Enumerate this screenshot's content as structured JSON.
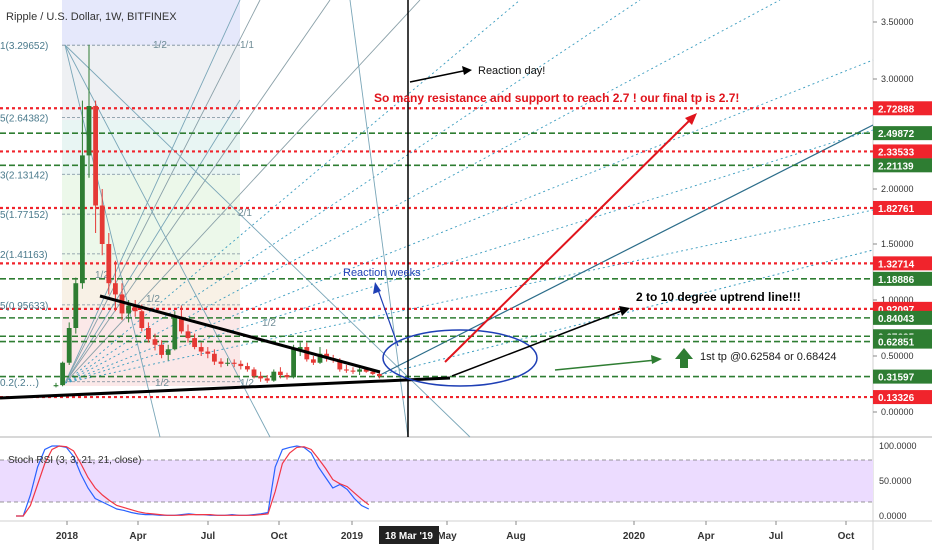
{
  "header": {
    "title": "Ripple / U.S. Dollar, 1W, BITFINEX"
  },
  "chart_data": [
    {
      "type": "candlestick",
      "title": "Ripple / U.S. Dollar, 1W, BITFINEX",
      "y_axis": {
        "scale": "log",
        "ticks": [
          "3.50000",
          "3.00000",
          "2.50000",
          "2.00000",
          "1.50000",
          "1.00000",
          "0.50000",
          "0.00000"
        ],
        "tick_values": [
          3.5,
          3.0,
          2.5,
          2.0,
          1.5,
          1.0,
          0.5,
          0.0
        ],
        "ylim": [
          0.0,
          3.8
        ]
      },
      "x_axis": {
        "ticks": [
          "2018",
          "Apr",
          "Jul",
          "Oct",
          "2019",
          "May",
          "Aug",
          "2020",
          "Apr",
          "Jul",
          "Oct"
        ],
        "highlight_label": "18 Mar '19"
      },
      "candles": [
        {
          "o": 0.23,
          "h": 0.26,
          "l": 0.22,
          "c": 0.24
        },
        {
          "o": 0.24,
          "h": 0.45,
          "l": 0.23,
          "c": 0.44
        },
        {
          "o": 0.44,
          "h": 0.8,
          "l": 0.42,
          "c": 0.75
        },
        {
          "o": 0.75,
          "h": 1.2,
          "l": 0.7,
          "c": 1.15
        },
        {
          "o": 1.15,
          "h": 2.8,
          "l": 1.1,
          "c": 2.3
        },
        {
          "o": 2.3,
          "h": 3.3,
          "l": 2.1,
          "c": 2.75
        },
        {
          "o": 2.75,
          "h": 2.8,
          "l": 1.6,
          "c": 1.85
        },
        {
          "o": 1.85,
          "h": 2.0,
          "l": 1.4,
          "c": 1.5
        },
        {
          "o": 1.5,
          "h": 1.6,
          "l": 1.05,
          "c": 1.15
        },
        {
          "o": 1.15,
          "h": 1.35,
          "l": 0.9,
          "c": 1.05
        },
        {
          "o": 1.05,
          "h": 1.15,
          "l": 0.82,
          "c": 0.88
        },
        {
          "o": 0.88,
          "h": 1.0,
          "l": 0.8,
          "c": 0.95
        },
        {
          "o": 0.95,
          "h": 1.0,
          "l": 0.85,
          "c": 0.9
        },
        {
          "o": 0.9,
          "h": 0.96,
          "l": 0.72,
          "c": 0.75
        },
        {
          "o": 0.75,
          "h": 0.8,
          "l": 0.62,
          "c": 0.65
        },
        {
          "o": 0.65,
          "h": 0.7,
          "l": 0.55,
          "c": 0.6
        },
        {
          "o": 0.6,
          "h": 0.64,
          "l": 0.48,
          "c": 0.51
        },
        {
          "o": 0.51,
          "h": 0.6,
          "l": 0.46,
          "c": 0.56
        },
        {
          "o": 0.56,
          "h": 0.9,
          "l": 0.55,
          "c": 0.85
        },
        {
          "o": 0.85,
          "h": 0.95,
          "l": 0.7,
          "c": 0.72
        },
        {
          "o": 0.72,
          "h": 0.78,
          "l": 0.62,
          "c": 0.66
        },
        {
          "o": 0.66,
          "h": 0.7,
          "l": 0.56,
          "c": 0.58
        },
        {
          "o": 0.58,
          "h": 0.62,
          "l": 0.5,
          "c": 0.54
        },
        {
          "o": 0.54,
          "h": 0.58,
          "l": 0.48,
          "c": 0.52
        },
        {
          "o": 0.52,
          "h": 0.56,
          "l": 0.42,
          "c": 0.45
        },
        {
          "o": 0.45,
          "h": 0.48,
          "l": 0.4,
          "c": 0.43
        },
        {
          "o": 0.43,
          "h": 0.48,
          "l": 0.41,
          "c": 0.44
        },
        {
          "o": 0.44,
          "h": 0.47,
          "l": 0.4,
          "c": 0.43
        },
        {
          "o": 0.43,
          "h": 0.46,
          "l": 0.38,
          "c": 0.41
        },
        {
          "o": 0.41,
          "h": 0.44,
          "l": 0.36,
          "c": 0.38
        },
        {
          "o": 0.38,
          "h": 0.4,
          "l": 0.3,
          "c": 0.32
        },
        {
          "o": 0.32,
          "h": 0.36,
          "l": 0.27,
          "c": 0.3
        },
        {
          "o": 0.3,
          "h": 0.33,
          "l": 0.26,
          "c": 0.28
        },
        {
          "o": 0.28,
          "h": 0.38,
          "l": 0.27,
          "c": 0.36
        },
        {
          "o": 0.36,
          "h": 0.4,
          "l": 0.3,
          "c": 0.33
        },
        {
          "o": 0.33,
          "h": 0.35,
          "l": 0.29,
          "c": 0.31
        },
        {
          "o": 0.31,
          "h": 0.6,
          "l": 0.3,
          "c": 0.56
        },
        {
          "o": 0.56,
          "h": 0.62,
          "l": 0.5,
          "c": 0.58
        },
        {
          "o": 0.58,
          "h": 0.62,
          "l": 0.45,
          "c": 0.47
        },
        {
          "o": 0.47,
          "h": 0.5,
          "l": 0.42,
          "c": 0.44
        },
        {
          "o": 0.44,
          "h": 0.58,
          "l": 0.43,
          "c": 0.52
        },
        {
          "o": 0.52,
          "h": 0.56,
          "l": 0.45,
          "c": 0.48
        },
        {
          "o": 0.48,
          "h": 0.51,
          "l": 0.44,
          "c": 0.46
        },
        {
          "o": 0.46,
          "h": 0.48,
          "l": 0.36,
          "c": 0.38
        },
        {
          "o": 0.38,
          "h": 0.42,
          "l": 0.35,
          "c": 0.37
        },
        {
          "o": 0.37,
          "h": 0.4,
          "l": 0.34,
          "c": 0.36
        },
        {
          "o": 0.36,
          "h": 0.4,
          "l": 0.33,
          "c": 0.38
        },
        {
          "o": 0.38,
          "h": 0.4,
          "l": 0.35,
          "c": 0.36
        },
        {
          "o": 0.36,
          "h": 0.38,
          "l": 0.33,
          "c": 0.34
        },
        {
          "o": 0.34,
          "h": 0.36,
          "l": 0.3,
          "c": 0.32
        }
      ],
      "price_levels": [
        {
          "label": "2.72888",
          "value": 2.72888,
          "color": "#f0242c",
          "style": "dotted"
        },
        {
          "label": "2.49872",
          "value": 2.49872,
          "color": "#2e7d32",
          "style": "dashed"
        },
        {
          "label": "2.33533",
          "value": 2.33533,
          "color": "#f0242c",
          "style": "dotted"
        },
        {
          "label": "2.21139",
          "value": 2.21139,
          "color": "#2e7d32",
          "style": "dashed"
        },
        {
          "label": "1.82761",
          "value": 1.82761,
          "color": "#f0242c",
          "style": "dotted"
        },
        {
          "label": "1.32714",
          "value": 1.32714,
          "color": "#f0242c",
          "style": "dotted"
        },
        {
          "label": "1.18886",
          "value": 1.18886,
          "color": "#2e7d32",
          "style": "dashed"
        },
        {
          "label": "0.92097",
          "value": 0.92097,
          "color": "#f0242c",
          "style": "dotted"
        },
        {
          "label": "0.84043",
          "value": 0.84043,
          "color": "#2e7d32",
          "style": "dashed"
        },
        {
          "label": "0.67625",
          "value": 0.67625,
          "color": "#2e7d32",
          "style": "dashed"
        },
        {
          "label": "0.62851",
          "value": 0.62851,
          "color": "#2e7d32",
          "style": "dashed"
        },
        {
          "label": "0.31597",
          "value": 0.31597,
          "color": "#2e7d32",
          "style": "dashed"
        },
        {
          "label": "0.13326",
          "value": 0.13326,
          "color": "#f0242c",
          "style": "dotted"
        }
      ],
      "fib_labels": [
        {
          "text": "1(3.29652)",
          "value": 3.29652
        },
        {
          "text": "5(2.64382)",
          "value": 2.64382
        },
        {
          "text": "3(2.13142)",
          "value": 2.13142
        },
        {
          "text": "5(1.77152)",
          "value": 1.77152
        },
        {
          "text": "2(1.41163)",
          "value": 1.41163
        },
        {
          "text": "5(0.95633)",
          "value": 0.95633
        },
        {
          "text": "0.2(.2…)",
          "value": 0.27
        }
      ],
      "gann_labels": [
        "1/2",
        "1/1",
        "2/1",
        "1/2",
        "1/2",
        "1/2",
        "1/2",
        "1/2"
      ],
      "annotations": {
        "reaction_day": "Reaction day!",
        "resistance_note": "So many resistance and support to reach 2.7 ! our final tp is 2.7!",
        "reaction_weeks": "Reaction weeks",
        "uptrend": "2 to 10 degree uptrend line!!!",
        "first_tp": "1st tp @0.62584 or 0.68424"
      }
    },
    {
      "type": "line",
      "title": "Stoch RSI (3, 3, 21, 21, close)",
      "y_axis": {
        "ticks": [
          "100.0000",
          "50.0000",
          "0.0000"
        ],
        "tick_values": [
          100,
          50,
          0
        ],
        "ylim": [
          0,
          100
        ]
      },
      "bands": [
        80,
        20
      ],
      "series": [
        {
          "values": [
            0,
            0,
            30,
            70,
            95,
            100,
            100,
            98,
            85,
            60,
            40,
            25,
            20,
            15,
            10,
            8,
            5,
            3,
            2,
            2,
            1,
            1,
            1,
            2,
            3,
            2,
            2,
            1,
            1,
            1,
            2,
            1,
            1,
            2,
            3,
            5,
            70,
            95,
            98,
            100,
            98,
            90,
            70,
            55,
            40,
            45,
            38,
            25,
            15,
            10
          ],
          "color": "#2962ff"
        },
        {
          "values": [
            0,
            0,
            15,
            45,
            75,
            95,
            100,
            99,
            93,
            75,
            55,
            40,
            30,
            22,
            15,
            12,
            9,
            6,
            4,
            3,
            2,
            1,
            1,
            1,
            2,
            2,
            2,
            2,
            1,
            1,
            1,
            1,
            1,
            1,
            2,
            3,
            35,
            75,
            90,
            98,
            99,
            95,
            82,
            68,
            52,
            46,
            42,
            33,
            24,
            16
          ],
          "color": "#f23645"
        }
      ]
    }
  ],
  "colors": {
    "up": "#2e7d32",
    "down": "#e53935",
    "resistance": "#f0242c",
    "support": "#2e7d32",
    "trend": "#000000",
    "annotation_blue": "#1e3fb5",
    "stoch_band": "#d8b8ff"
  }
}
